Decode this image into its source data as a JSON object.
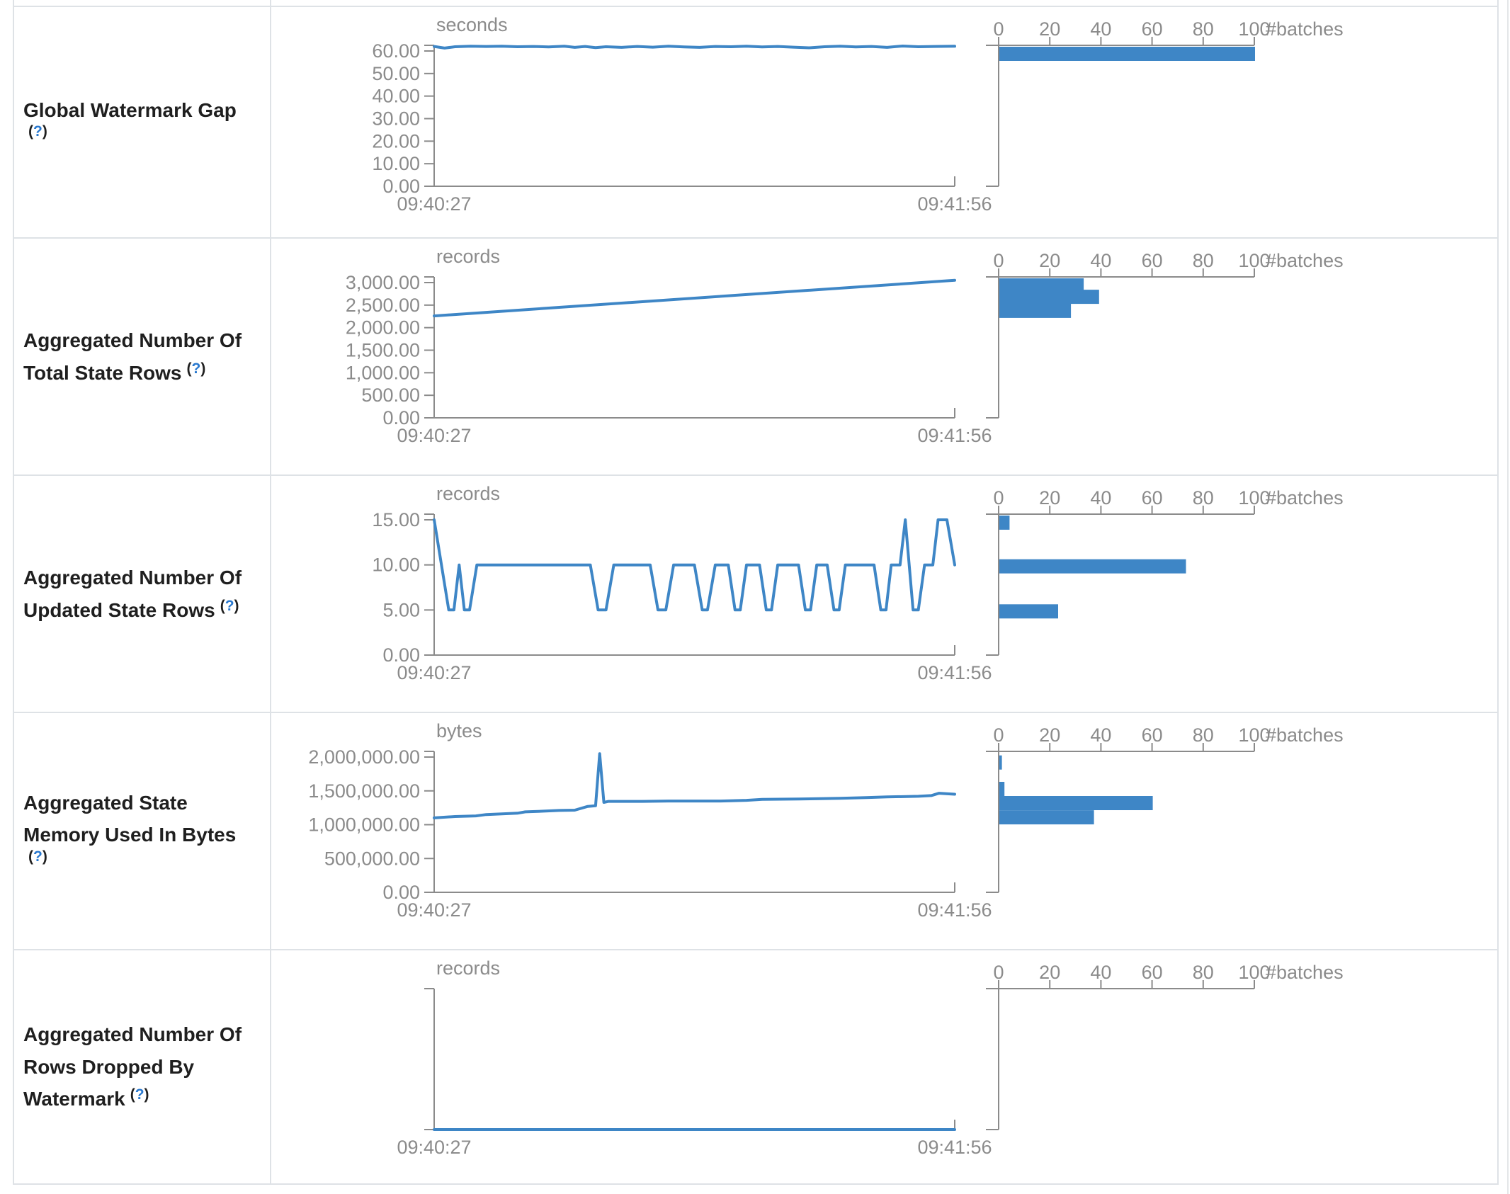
{
  "page": {
    "accent_blue": "#3e86c6",
    "axis_gray": "#8b8b8b",
    "border_color": "#dee2e6",
    "link_blue": "#2878cf",
    "background": "#ffffff"
  },
  "table": {
    "rows": [
      {
        "label_text": "Global Watermark Gap\n",
        "help": {
          "open": "(",
          "q": "?",
          "close": ")"
        }
      },
      {
        "label_text": "Aggregated Number Of\nTotal State Rows",
        "help": {
          "open": "(",
          "q": "?",
          "close": ")"
        }
      },
      {
        "label_text": "Aggregated Number Of\nUpdated State Rows",
        "help": {
          "open": "(",
          "q": "?",
          "close": ")"
        }
      },
      {
        "label_text": "Aggregated State\nMemory Used In Bytes\n",
        "help": {
          "open": "(",
          "q": "?",
          "close": ")"
        }
      },
      {
        "label_text": "Aggregated Number Of\nRows Dropped By\nWatermark",
        "help": {
          "open": "(",
          "q": "?",
          "close": ")"
        }
      }
    ]
  },
  "chart_data": [
    {
      "type": "line",
      "metric": "Global Watermark Gap",
      "unit": "seconds",
      "x_start_label": "09:40:27",
      "x_end_label": "09:41:56",
      "ylim": [
        0,
        60
      ],
      "yticks": [
        0,
        10,
        20,
        30,
        40,
        50,
        60
      ],
      "line": {
        "x": [
          0,
          0.02,
          0.04,
          0.07,
          0.1,
          0.13,
          0.16,
          0.19,
          0.22,
          0.25,
          0.27,
          0.29,
          0.31,
          0.33,
          0.36,
          0.39,
          0.42,
          0.45,
          0.48,
          0.51,
          0.54,
          0.57,
          0.6,
          0.63,
          0.66,
          0.69,
          0.72,
          0.75,
          0.78,
          0.81,
          0.84,
          0.87,
          0.9,
          0.93,
          0.96,
          1.0
        ],
        "y": [
          62.0,
          61.3,
          61.9,
          62.1,
          62.0,
          62.1,
          61.9,
          62.0,
          61.8,
          62.1,
          61.6,
          62.0,
          61.5,
          61.9,
          61.6,
          62.0,
          61.7,
          62.1,
          61.8,
          61.6,
          62.0,
          61.9,
          62.1,
          61.8,
          62.0,
          61.7,
          61.4,
          61.9,
          62.1,
          61.8,
          62.0,
          61.6,
          62.2,
          61.9,
          62.0,
          62.1
        ]
      },
      "histogram": {
        "xlabel": "#batches",
        "xlim": [
          0,
          100
        ],
        "xticks": [
          0,
          20,
          40,
          60,
          80,
          100
        ],
        "bins": [
          {
            "value": 61.5,
            "count": 100
          }
        ]
      }
    },
    {
      "type": "line",
      "metric": "Aggregated Number Of Total State Rows",
      "unit": "records",
      "x_start_label": "09:40:27",
      "x_end_label": "09:41:56",
      "ylim": [
        0,
        3000
      ],
      "yticks": [
        0,
        500,
        1000,
        1500,
        2000,
        2500,
        3000
      ],
      "line": {
        "x": [
          0,
          1
        ],
        "y": [
          2260,
          3050
        ]
      },
      "histogram": {
        "xlabel": "#batches",
        "xlim": [
          0,
          100
        ],
        "xticks": [
          0,
          20,
          40,
          60,
          80,
          100
        ],
        "bins": [
          {
            "value": 3035,
            "count": 33
          },
          {
            "value": 2716,
            "count": 39
          },
          {
            "value": 2404,
            "count": 28
          }
        ]
      }
    },
    {
      "type": "line",
      "metric": "Aggregated Number Of Updated State Rows",
      "unit": "records",
      "x_start_label": "09:40:27",
      "x_end_label": "09:41:56",
      "ylim": [
        0,
        15
      ],
      "yticks": [
        0,
        5,
        10,
        15
      ],
      "line": {
        "x": [
          0,
          0.028,
          0.038,
          0.048,
          0.058,
          0.068,
          0.082,
          0.3,
          0.315,
          0.33,
          0.345,
          0.415,
          0.43,
          0.445,
          0.46,
          0.5,
          0.515,
          0.525,
          0.54,
          0.565,
          0.578,
          0.588,
          0.6,
          0.625,
          0.638,
          0.648,
          0.66,
          0.7,
          0.713,
          0.723,
          0.735,
          0.755,
          0.768,
          0.778,
          0.79,
          0.845,
          0.858,
          0.868,
          0.878,
          0.895,
          0.905,
          0.92,
          0.93,
          0.942,
          0.958,
          0.968,
          0.985,
          1.0
        ],
        "y": [
          15,
          5,
          5,
          10,
          5,
          5,
          10,
          10,
          5,
          5,
          10,
          10,
          5,
          5,
          10,
          10,
          5,
          5,
          10,
          10,
          5,
          5,
          10,
          10,
          5,
          5,
          10,
          10,
          5,
          5,
          10,
          10,
          5,
          5,
          10,
          10,
          5,
          5,
          10,
          10,
          15,
          5,
          5,
          10,
          10,
          15,
          15,
          10
        ]
      },
      "histogram": {
        "xlabel": "#batches",
        "xlim": [
          0,
          100
        ],
        "xticks": [
          0,
          20,
          40,
          60,
          80,
          100
        ],
        "bins": [
          {
            "value": 15,
            "count": 4
          },
          {
            "value": 10,
            "count": 73
          },
          {
            "value": 5,
            "count": 23
          }
        ]
      }
    },
    {
      "type": "line",
      "metric": "Aggregated State Memory Used In Bytes",
      "unit": "bytes",
      "x_start_label": "09:40:27",
      "x_end_label": "09:41:56",
      "ylim": [
        0,
        2000000
      ],
      "yticks": [
        0,
        500000,
        1000000,
        1500000,
        2000000
      ],
      "line": {
        "x": [
          0,
          0.04,
          0.08,
          0.1,
          0.13,
          0.16,
          0.175,
          0.21,
          0.24,
          0.27,
          0.295,
          0.31,
          0.318,
          0.326,
          0.335,
          0.4,
          0.45,
          0.5,
          0.55,
          0.6,
          0.63,
          0.7,
          0.78,
          0.83,
          0.87,
          0.93,
          0.955,
          0.97,
          1.0
        ],
        "y": [
          1100000,
          1120000,
          1130000,
          1150000,
          1160000,
          1170000,
          1190000,
          1200000,
          1210000,
          1215000,
          1270000,
          1280000,
          2050000,
          1330000,
          1345000,
          1345000,
          1350000,
          1350000,
          1350000,
          1360000,
          1375000,
          1380000,
          1390000,
          1400000,
          1410000,
          1420000,
          1430000,
          1465000,
          1450000
        ]
      },
      "histogram": {
        "xlabel": "#batches",
        "xlim": [
          0,
          100
        ],
        "xticks": [
          0,
          20,
          40,
          60,
          80,
          100
        ],
        "bins": [
          {
            "value": 1940000,
            "count": 1
          },
          {
            "value": 1550000,
            "count": 2
          },
          {
            "value": 1340000,
            "count": 60
          },
          {
            "value": 1130000,
            "count": 37
          }
        ]
      }
    },
    {
      "type": "line",
      "metric": "Aggregated Number Of Rows Dropped By Watermark",
      "unit": "records",
      "x_start_label": "09:40:27",
      "x_end_label": "09:41:56",
      "ylim": [
        0,
        1
      ],
      "yticks": [],
      "line": {
        "x": [
          0,
          1
        ],
        "y": [
          0,
          0
        ]
      },
      "histogram": {
        "xlabel": "#batches",
        "xlim": [
          0,
          100
        ],
        "xticks": [
          0,
          20,
          40,
          60,
          80,
          100
        ],
        "bins": []
      }
    }
  ]
}
